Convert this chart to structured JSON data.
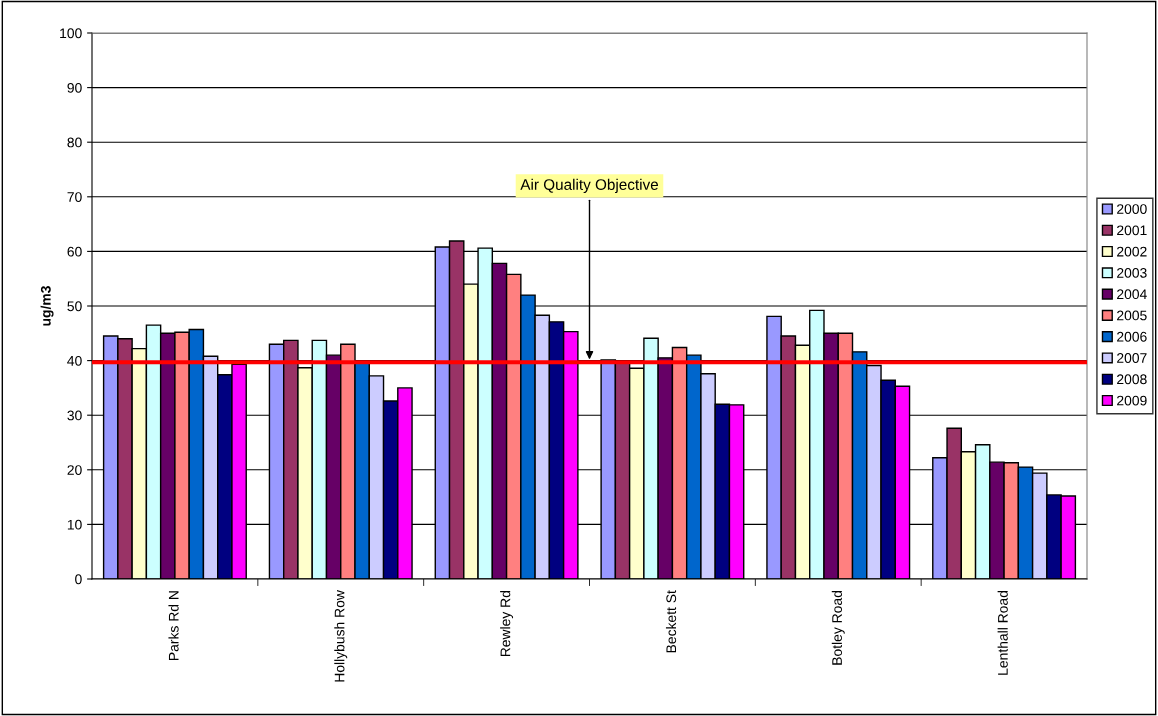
{
  "chart_data": {
    "type": "bar",
    "ylabel": "ug/m3",
    "categories": [
      "Parks Rd N",
      "Hollybush Row",
      "Rewley Rd",
      "Beckett St",
      "Botley Road",
      "Lenthall Road"
    ],
    "series": [
      {
        "name": "2000",
        "color": "#9999ff",
        "values": [
          44.5,
          43.0,
          60.8,
          40.1,
          48.1,
          22.2
        ]
      },
      {
        "name": "2001",
        "color": "#993366",
        "values": [
          44.0,
          43.7,
          61.9,
          39.5,
          44.5,
          27.6
        ]
      },
      {
        "name": "2002",
        "color": "#ffffcc",
        "values": [
          42.2,
          38.7,
          54.0,
          38.6,
          42.8,
          23.3
        ]
      },
      {
        "name": "2003",
        "color": "#ccffff",
        "values": [
          46.5,
          43.7,
          60.6,
          44.1,
          49.2,
          24.6
        ]
      },
      {
        "name": "2004",
        "color": "#660066",
        "values": [
          45.0,
          41.0,
          57.8,
          40.5,
          45.0,
          21.4
        ]
      },
      {
        "name": "2005",
        "color": "#ff8080",
        "values": [
          45.2,
          43.0,
          55.8,
          42.4,
          45.0,
          21.3
        ]
      },
      {
        "name": "2006",
        "color": "#0066cc",
        "values": [
          45.7,
          39.8,
          52.0,
          41.0,
          41.6,
          20.5
        ]
      },
      {
        "name": "2007",
        "color": "#ccccff",
        "values": [
          40.8,
          37.2,
          48.3,
          37.6,
          39.1,
          19.4
        ]
      },
      {
        "name": "2008",
        "color": "#000080",
        "values": [
          37.4,
          32.6,
          47.1,
          32.0,
          36.4,
          15.4
        ]
      },
      {
        "name": "2009",
        "color": "#ff00ff",
        "values": [
          39.3,
          35.0,
          45.3,
          31.9,
          35.3,
          15.2
        ]
      }
    ],
    "ylim": [
      0,
      100
    ],
    "yticks": [
      0,
      10,
      20,
      30,
      40,
      50,
      60,
      70,
      80,
      90,
      100
    ],
    "grid": "y",
    "legend": "right",
    "ref_lines": [
      {
        "axis": "y",
        "value": 39.7,
        "color": "#ff0000"
      }
    ],
    "annotations": [
      {
        "text": "Air Quality Objective",
        "y": 39.7
      }
    ]
  }
}
